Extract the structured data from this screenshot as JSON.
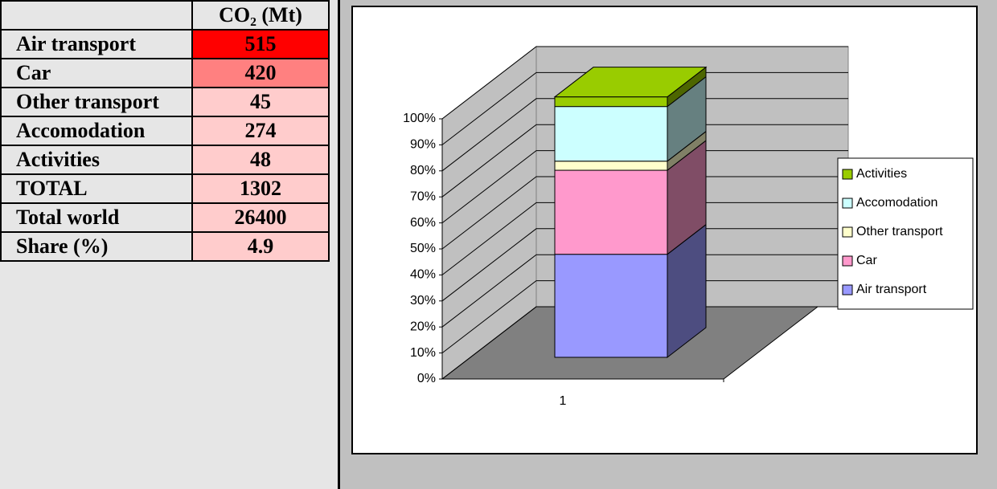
{
  "table": {
    "header": [
      "CO₂ (Mt)"
    ],
    "rows": [
      {
        "label": "Air transport",
        "value": 515,
        "color": "#ff0000"
      },
      {
        "label": "Car",
        "value": 420,
        "color": "#ff8080"
      },
      {
        "label": "Other transport",
        "value": 45,
        "color": "#ffcccc"
      },
      {
        "label": "Accomodation",
        "value": 274,
        "color": "#ffcccc"
      },
      {
        "label": "Activities",
        "value": 48,
        "color": "#ffcccc"
      },
      {
        "label": "TOTAL",
        "value": 1302,
        "color": "#ffcccc"
      },
      {
        "label": "Total world",
        "value": 26400,
        "color": "#ffcccc"
      },
      {
        "label": "Share (%)",
        "value": 4.9,
        "color": "#ffcccc"
      }
    ]
  },
  "chart_data": {
    "type": "bar3d-stacked",
    "categories": [
      "1"
    ],
    "series": [
      {
        "name": "Air transport",
        "color": "#9999ff",
        "values": [
          39.6
        ]
      },
      {
        "name": "Car",
        "color": "#ff99cc",
        "values": [
          32.3
        ]
      },
      {
        "name": "Other transport",
        "color": "#ffffcc",
        "values": [
          3.5
        ]
      },
      {
        "name": "Accomodation",
        "color": "#ccffff",
        "values": [
          21.0
        ]
      },
      {
        "name": "Activities",
        "color": "#99cc00",
        "values": [
          3.7
        ]
      }
    ],
    "ylim": [
      0,
      100
    ],
    "yticks": [
      {
        "value": 0,
        "label": "0%"
      },
      {
        "value": 10,
        "label": "10%"
      },
      {
        "value": 20,
        "label": "20%"
      },
      {
        "value": 30,
        "label": "30%"
      },
      {
        "value": 40,
        "label": "40%"
      },
      {
        "value": 50,
        "label": "50%"
      },
      {
        "value": 60,
        "label": "60%"
      },
      {
        "value": 70,
        "label": "70%"
      },
      {
        "value": 80,
        "label": "80%"
      },
      {
        "value": 90,
        "label": "90%"
      },
      {
        "value": 100,
        "label": "100%"
      }
    ],
    "grid": true,
    "legend": "right"
  }
}
